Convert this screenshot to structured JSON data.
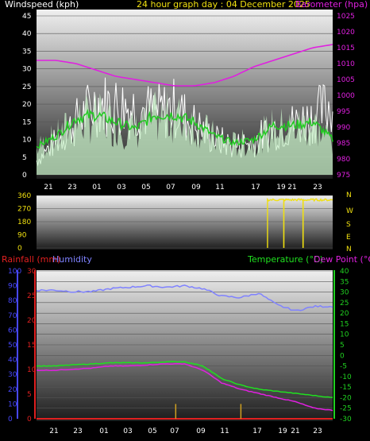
{
  "header": {
    "left": "Windspeed (kph)",
    "center": "24 hour graph day : 04 December 2025",
    "right": "Barometer (hpa)"
  },
  "lower_header": {
    "rain": "Rainfall (mm)",
    "humidity": "Humidity",
    "temperature": "Temperature (°C)",
    "dewpoint": "Dew Point (°C)"
  },
  "colors": {
    "wind": "#ffffff",
    "wind_avg": "#22cc22",
    "wind_fill": "#c8f0c8",
    "barometer": "#e020e0",
    "direction": "#f0e010",
    "humidity": "#7f82ff",
    "temperature": "#20e020",
    "dewpoint": "#e020e0",
    "rain": "#e02020",
    "rain_axis": "#e02020",
    "humidity_axis": "#4848ff",
    "temp_axis": "#20d020"
  },
  "chart_data": [
    {
      "type": "line",
      "title": "24 hour graph day : 04 December 2025",
      "x_ticks": [
        "21",
        "23",
        "01",
        "03",
        "05",
        "07",
        "09",
        "11",
        "17",
        "19",
        "21",
        "23"
      ],
      "ylabel_left": "Windspeed (kph)",
      "y_left_ticks": [
        "0",
        "5",
        "10",
        "15",
        "20",
        "25",
        "30",
        "35",
        "40",
        "45"
      ],
      "y_left_range": [
        0,
        45
      ],
      "ylabel_right": "Barometer (hpa)",
      "y_right_ticks": [
        "975",
        "980",
        "985",
        "990",
        "995",
        "1000",
        "1005",
        "1010",
        "1015",
        "1020",
        "1025"
      ],
      "y_right_range": [
        975,
        1025
      ],
      "series": [
        {
          "name": "Windspeed (kph)",
          "values": [
            6,
            14,
            22,
            30,
            29,
            28,
            26,
            28,
            21,
            15,
            12,
            14,
            19,
            21,
            24,
            30
          ]
        },
        {
          "name": "Barometer (hpa)",
          "values": [
            1011,
            1011,
            1010,
            1008,
            1006,
            1005,
            1004,
            1003,
            1003,
            1004,
            1006,
            1009,
            1011,
            1013,
            1015,
            1016
          ]
        }
      ],
      "average_wind": [
        8,
        11,
        16,
        17,
        15,
        13,
        17,
        17,
        15,
        11,
        9,
        10,
        14,
        14,
        15,
        10
      ]
    },
    {
      "type": "line",
      "y_ticks": [
        "0",
        "90",
        "180",
        "270",
        "360"
      ],
      "y_range": [
        0,
        360
      ],
      "compass_labels": [
        "N",
        "W",
        "S",
        "E",
        "N"
      ],
      "series": [
        {
          "name": "Wind direction",
          "points": [
            [
              0.78,
              0
            ],
            [
              0.78,
              335
            ],
            [
              1.0,
              320
            ]
          ]
        }
      ]
    },
    {
      "type": "line",
      "x_ticks": [
        "21",
        "23",
        "01",
        "03",
        "05",
        "07",
        "09",
        "11",
        "17",
        "19",
        "21",
        "23"
      ],
      "ylabel_left_1": "Rainfall (mm)",
      "rain_ticks": [
        "0",
        "5",
        "10",
        "15",
        "20",
        "25",
        "30"
      ],
      "rain_range": [
        0,
        30
      ],
      "ylabel_left_2": "Humidity",
      "humidity_ticks": [
        "0",
        "10",
        "20",
        "30",
        "40",
        "50",
        "60",
        "70",
        "80",
        "90",
        "100"
      ],
      "humidity_range": [
        0,
        100
      ],
      "ylabel_right": "Temperature (°C)",
      "ylabel_right_2": "Dew Point (°C)",
      "temp_ticks": [
        "-30",
        "-25",
        "-20",
        "-15",
        "-10",
        "-5",
        "0",
        "5",
        "10",
        "15",
        "20",
        "25",
        "30",
        "35",
        "40"
      ],
      "temp_range": [
        -30,
        40
      ],
      "series": [
        {
          "name": "Humidity",
          "values": [
            87,
            87,
            86,
            86,
            88,
            89,
            90,
            89,
            90,
            88,
            83,
            82,
            85,
            77,
            73,
            76,
            76
          ]
        },
        {
          "name": "Temperature (°C)",
          "values": [
            -5,
            -5,
            -4.5,
            -4,
            -3.5,
            -3.5,
            -3.5,
            -3,
            -3,
            -5,
            -11,
            -14,
            -16,
            -17,
            -18,
            -19,
            -20
          ]
        },
        {
          "name": "Dew Point (°C)",
          "values": [
            -7,
            -7,
            -6.5,
            -6,
            -5,
            -5,
            -4.5,
            -4,
            -4,
            -7,
            -13,
            -16,
            -18,
            -20,
            -22,
            -25,
            -26
          ]
        },
        {
          "name": "Rainfall (mm)",
          "values": [
            0,
            0,
            0,
            0,
            0,
            0,
            0,
            0,
            0,
            0,
            0,
            0,
            0,
            0,
            0,
            0,
            0
          ]
        }
      ]
    }
  ]
}
